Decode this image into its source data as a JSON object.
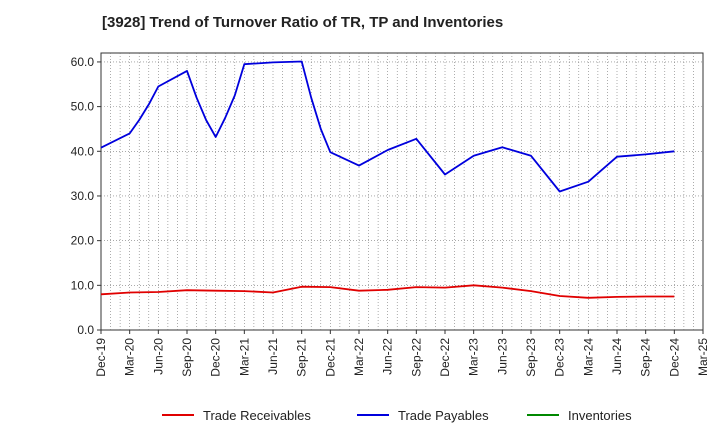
{
  "chart_data": {
    "type": "line",
    "title": "[3928]  Trend of Turnover Ratio of TR, TP and Inventories",
    "xlabel": "",
    "ylabel": "",
    "ylim": [
      0,
      62
    ],
    "y_ticks": [
      "0.0",
      "10.0",
      "20.0",
      "30.0",
      "40.0",
      "50.0",
      "60.0"
    ],
    "x_tick_labels": [
      "Dec-19",
      "Mar-20",
      "Jun-20",
      "Sep-20",
      "Dec-20",
      "Mar-21",
      "Jun-21",
      "Sep-21",
      "Dec-21",
      "Mar-22",
      "Jun-22",
      "Sep-22",
      "Dec-22",
      "Mar-23",
      "Jun-23",
      "Sep-23",
      "Dec-23",
      "Mar-24",
      "Jun-24",
      "Sep-24",
      "Dec-24",
      "Mar-25"
    ],
    "grid": true,
    "legend_position": "bottom",
    "series": [
      {
        "name": "Trade Receivables",
        "color": "#e00000",
        "points": [
          [
            "Dec-19",
            8.0
          ],
          [
            "Mar-20",
            8.4
          ],
          [
            "Jun-20",
            8.5
          ],
          [
            "Sep-20",
            8.9
          ],
          [
            "Dec-20",
            8.8
          ],
          [
            "Mar-21",
            8.7
          ],
          [
            "Jun-21",
            8.4
          ],
          [
            "Sep-21",
            9.7
          ],
          [
            "Dec-21",
            9.6
          ],
          [
            "Mar-22",
            8.8
          ],
          [
            "Jun-22",
            9.0
          ],
          [
            "Sep-22",
            9.6
          ],
          [
            "Dec-22",
            9.5
          ],
          [
            "Mar-23",
            10.0
          ],
          [
            "Jun-23",
            9.5
          ],
          [
            "Sep-23",
            8.7
          ],
          [
            "Dec-23",
            7.6
          ],
          [
            "Mar-24",
            7.2
          ],
          [
            "Jun-24",
            7.4
          ],
          [
            "Sep-24",
            7.5
          ],
          [
            "Dec-24",
            7.5
          ]
        ]
      },
      {
        "name": "Trade Payables",
        "color": "#0000dd",
        "points": [
          [
            "Dec-19",
            40.8
          ],
          [
            "Mar-20",
            44.0
          ],
          [
            "Apr-20",
            47.0
          ],
          [
            "May-20",
            50.5
          ],
          [
            "Jun-20",
            54.5
          ],
          [
            "Sep-20",
            58.0
          ],
          [
            "Oct-20",
            52.0
          ],
          [
            "Nov-20",
            47.0
          ],
          [
            "Dec-20",
            43.2
          ],
          [
            "Jan-21",
            47.5
          ],
          [
            "Feb-21",
            52.5
          ],
          [
            "Mar-21",
            59.5
          ],
          [
            "Jun-21",
            59.9
          ],
          [
            "Sep-21",
            60.1
          ],
          [
            "Oct-21",
            52.0
          ],
          [
            "Nov-21",
            45.0
          ],
          [
            "Dec-21",
            39.8
          ],
          [
            "Mar-22",
            36.8
          ],
          [
            "Jun-22",
            40.3
          ],
          [
            "Sep-22",
            42.8
          ],
          [
            "Dec-22",
            34.8
          ],
          [
            "Mar-23",
            39.0
          ],
          [
            "Jun-23",
            40.9
          ],
          [
            "Sep-23",
            39.0
          ],
          [
            "Dec-23",
            31.0
          ],
          [
            "Mar-24",
            33.2
          ],
          [
            "Jun-24",
            38.8
          ],
          [
            "Sep-24",
            39.3
          ],
          [
            "Dec-24",
            40.0
          ]
        ]
      },
      {
        "name": "Inventories",
        "color": "#008800",
        "points": []
      }
    ]
  }
}
